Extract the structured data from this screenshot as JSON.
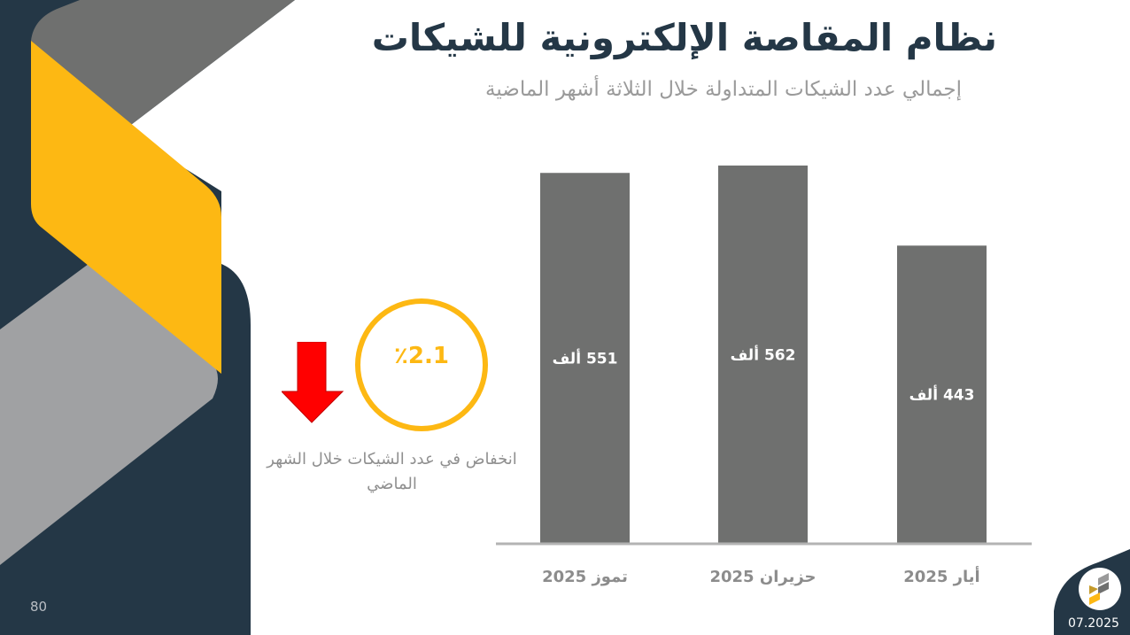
{
  "header": {
    "title": "نظام المقاصة الإلكترونية للشيكات",
    "subtitle": "إجمالي عدد الشيكات المتداولة خلال الثلاثة أشهر الماضية"
  },
  "kpi": {
    "value": "٪2.1",
    "direction_icon": "arrow-down-icon",
    "description": "انخفاض في عدد الشيكات خلال الشهر الماضي"
  },
  "footer": {
    "page_number": "80",
    "date": "07.2025"
  },
  "colors": {
    "navy": "#243746",
    "yellow": "#FDB813",
    "bar": "#6f706f",
    "arrow": "#ff0000"
  },
  "chart_data": {
    "type": "bar",
    "title": "إجمالي عدد الشيكات المتداولة خلال الثلاثة أشهر الماضية",
    "categories": [
      "تموز 2025",
      "حزيران 2025",
      "أيار 2025"
    ],
    "values": [
      551,
      562,
      443
    ],
    "data_labels": [
      "551 ألف",
      "562 ألف",
      "443 ألف"
    ],
    "unit": "ألف",
    "xlabel": "",
    "ylabel": "",
    "ylim": [
      0,
      562
    ],
    "grid": false,
    "legend": "none"
  }
}
